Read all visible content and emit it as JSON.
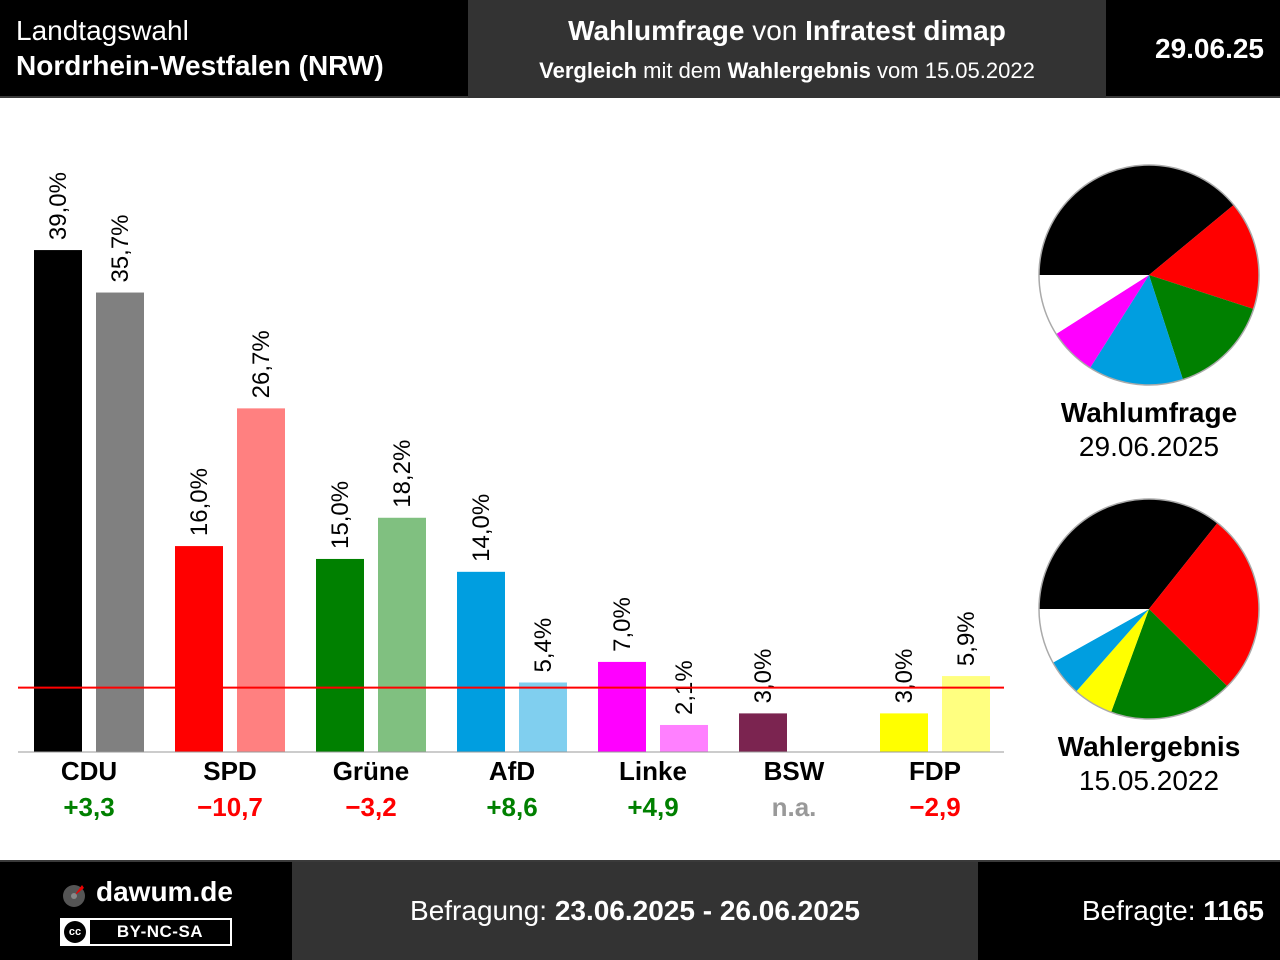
{
  "header": {
    "line1": "Landtagswahl",
    "line2": "Nordrhein-Westfalen (NRW)",
    "title_bold1": "Wahlumfrage",
    "title_mid": " von ",
    "title_bold2": "Infratest dimap",
    "sub_bold1": "Vergleich",
    "sub_mid": " mit dem ",
    "sub_bold2": "Wahlergebnis",
    "sub_end": " vom 15.05.2022",
    "date": "29.06.25"
  },
  "chart_data": {
    "type": "bar",
    "categories": [
      "CDU",
      "SPD",
      "Grüne",
      "AfD",
      "Linke",
      "BSW",
      "FDP"
    ],
    "series": [
      {
        "values": [
          39.0,
          16.0,
          15.0,
          14.0,
          7.0,
          3.0,
          3.0
        ],
        "labels": [
          "39,0%",
          "16,0%",
          "15,0%",
          "14,0%",
          "7,0%",
          "3,0%",
          "3,0%"
        ],
        "colors": [
          "#000000",
          "#ff0000",
          "#008000",
          "#009ee0",
          "#ff00ff",
          "#7b2450",
          "#ffff00"
        ]
      },
      {
        "values": [
          35.7,
          26.7,
          18.2,
          5.4,
          2.1,
          null,
          5.9
        ],
        "labels": [
          "35,7%",
          "26,7%",
          "18,2%",
          "5,4%",
          "2,1%",
          "",
          "5,9%"
        ],
        "colors": [
          "#808080",
          "#ff8080",
          "#80c080",
          "#80cfef",
          "#ff80ff",
          "#bd92a8",
          "#ffff80"
        ]
      }
    ],
    "diffs": [
      "+3,3",
      "−10,7",
      "−3,2",
      "+8,6",
      "+4,9",
      "n.a.",
      "−2,9"
    ],
    "diff_colors": [
      "#008000",
      "#ff0000",
      "#ff0000",
      "#008000",
      "#008000",
      "#999999",
      "#ff0000"
    ],
    "threshold": 5,
    "threshold_color": "#ff0000",
    "ylim": [
      0,
      40
    ],
    "grid": false,
    "pies": [
      {
        "title": "Wahlumfrage",
        "date": "29.06.2025",
        "slices": [
          {
            "party": "CDU",
            "value": 39.0,
            "color": "#000000"
          },
          {
            "party": "SPD",
            "value": 16.0,
            "color": "#ff0000"
          },
          {
            "party": "Grüne",
            "value": 15.0,
            "color": "#008000"
          },
          {
            "party": "AfD",
            "value": 14.0,
            "color": "#009ee0"
          },
          {
            "party": "Linke",
            "value": 7.0,
            "color": "#ff00ff"
          }
        ]
      },
      {
        "title": "Wahlergebnis",
        "date": "15.05.2022",
        "slices": [
          {
            "party": "CDU",
            "value": 35.7,
            "color": "#000000"
          },
          {
            "party": "SPD",
            "value": 26.7,
            "color": "#ff0000"
          },
          {
            "party": "Grüne",
            "value": 18.2,
            "color": "#008000"
          },
          {
            "party": "FDP",
            "value": 5.9,
            "color": "#ffff00"
          },
          {
            "party": "AfD",
            "value": 5.4,
            "color": "#009ee0"
          }
        ]
      }
    ]
  },
  "footer": {
    "site": "dawum.de",
    "license_icon": "cc",
    "license": "BY-NC-SA",
    "survey_label": "Befragung: ",
    "survey_period": "23.06.2025 - 26.06.2025",
    "respondents_label": "Befragte: ",
    "respondents": "1165"
  }
}
